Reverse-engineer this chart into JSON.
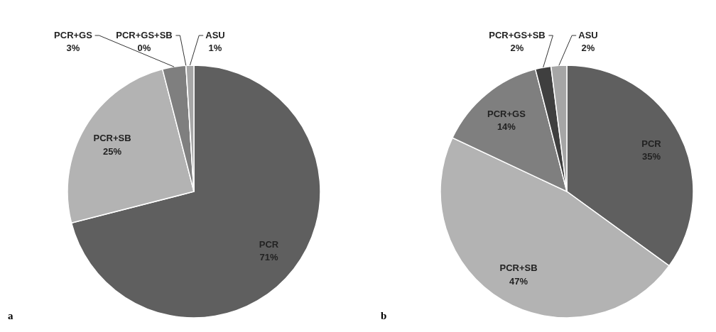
{
  "chart_data": [
    {
      "type": "pie",
      "categories": [
        "PCR",
        "PCR+SB",
        "PCR+GS",
        "PCR+GS+SB",
        "ASU"
      ],
      "values": [
        71,
        25,
        3,
        0,
        1
      ],
      "data_labels": true,
      "value_labels": [
        "71%",
        "25%",
        "3%",
        "0%",
        "1%"
      ],
      "colors": [
        "#5f5f5f",
        "#b3b3b3",
        "#7f7f7f",
        "#3f3f3f",
        "#a6a6a6"
      ],
      "annotations": [
        "a"
      ]
    },
    {
      "type": "pie",
      "categories": [
        "PCR",
        "PCR+SB",
        "PCR+GS",
        "PCR+GS+SB",
        "ASU"
      ],
      "values": [
        35,
        47,
        14,
        2,
        2
      ],
      "data_labels": true,
      "value_labels": [
        "35%",
        "47%",
        "14%",
        "2%",
        "2%"
      ],
      "colors": [
        "#5f5f5f",
        "#b3b3b3",
        "#7f7f7f",
        "#3f3f3f",
        "#a6a6a6"
      ],
      "annotations": [
        "b"
      ]
    }
  ]
}
